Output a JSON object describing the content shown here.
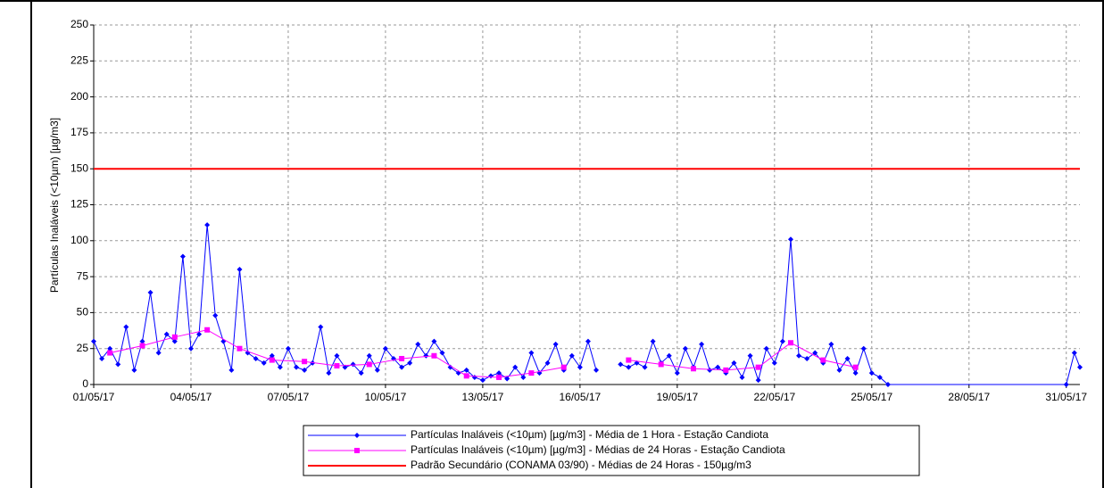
{
  "chart_data": {
    "type": "line",
    "ylabel": "Partículas Inaláveis (<10µm) [µg/m3]",
    "xlim": [
      1,
      31.42
    ],
    "ylim": [
      0,
      250
    ],
    "yticks": [
      0,
      25,
      50,
      75,
      100,
      125,
      150,
      175,
      200,
      225,
      250
    ],
    "xticks": [
      {
        "value": 1,
        "label": "01/05/17"
      },
      {
        "value": 4,
        "label": "04/05/17"
      },
      {
        "value": 7,
        "label": "07/05/17"
      },
      {
        "value": 10,
        "label": "10/05/17"
      },
      {
        "value": 13,
        "label": "13/05/17"
      },
      {
        "value": 16,
        "label": "16/05/17"
      },
      {
        "value": 19,
        "label": "19/05/17"
      },
      {
        "value": 22,
        "label": "22/05/17"
      },
      {
        "value": 25,
        "label": "25/05/17"
      },
      {
        "value": 28,
        "label": "28/05/17"
      },
      {
        "value": 31,
        "label": "31/05/17"
      }
    ],
    "grid": true,
    "series": [
      {
        "name": "Partículas Inaláveis (<10µm) [µg/m3] - Média de 1 Hora - Estação Candiota",
        "color": "#0000ff",
        "marker": "diamond",
        "x": [
          1,
          1.25,
          1.5,
          1.75,
          2,
          2.25,
          2.5,
          2.75,
          3,
          3.25,
          3.5,
          3.75,
          4,
          4.25,
          4.5,
          4.75,
          5,
          5.25,
          5.5,
          5.75,
          6,
          6.25,
          6.5,
          6.75,
          7,
          7.25,
          7.5,
          7.75,
          8,
          8.25,
          8.5,
          8.75,
          9,
          9.25,
          9.5,
          9.75,
          10,
          10.25,
          10.5,
          10.75,
          11,
          11.25,
          11.5,
          11.75,
          12,
          12.25,
          12.5,
          12.75,
          13,
          13.25,
          13.5,
          13.75,
          14,
          14.25,
          14.5,
          14.75,
          15,
          15.25,
          15.5,
          15.75,
          16,
          16.25,
          16.5,
          16.75,
          17,
          17.25,
          17.5,
          17.75,
          18,
          18.25,
          18.5,
          18.75,
          19,
          19.25,
          19.5,
          19.75,
          20,
          20.25,
          20.5,
          20.75,
          21,
          21.25,
          21.5,
          21.75,
          22,
          22.25,
          22.5,
          22.75,
          23,
          23.25,
          23.5,
          23.75,
          24,
          24.25,
          24.5,
          24.75,
          25,
          25.25,
          25.5,
          31,
          31.25,
          31.42
        ],
        "values": [
          30,
          18,
          25,
          14,
          40,
          10,
          30,
          64,
          22,
          35,
          30,
          89,
          25,
          35,
          111,
          48,
          30,
          10,
          80,
          22,
          18,
          15,
          20,
          12,
          25,
          12,
          10,
          15,
          40,
          8,
          20,
          12,
          14,
          8,
          20,
          10,
          25,
          18,
          12,
          15,
          28,
          20,
          30,
          22,
          12,
          8,
          10,
          5,
          3,
          6,
          8,
          4,
          12,
          5,
          22,
          8,
          15,
          28,
          10,
          20,
          12,
          30,
          10,
          null,
          null,
          14,
          12,
          15,
          12,
          30,
          15,
          20,
          8,
          25,
          12,
          28,
          10,
          12,
          8,
          15,
          5,
          20,
          3,
          25,
          15,
          30,
          101,
          20,
          18,
          22,
          15,
          28,
          10,
          18,
          8,
          25,
          8,
          5,
          0,
          0,
          22,
          12
        ]
      },
      {
        "name": "Partículas Inaláveis (<10µm) [µg/m3] - Médias de 24 Horas - Estação Candiota",
        "color": "#ff00ff",
        "marker": "square",
        "x": [
          1.5,
          2.5,
          3.5,
          4.5,
          5.5,
          6.5,
          7.5,
          8.5,
          9.5,
          10.5,
          11.5,
          12.5,
          13.5,
          14.5,
          15.5,
          16.5,
          17.5,
          18.5,
          19.5,
          20.5,
          21.5,
          22.5,
          23.5,
          24.5
        ],
        "values": [
          22,
          27,
          33,
          38,
          25,
          17,
          16,
          13,
          14,
          18,
          20,
          6,
          5,
          8,
          12,
          null,
          17,
          14,
          11,
          10,
          12,
          29,
          17,
          12
        ]
      },
      {
        "name": "Padrão Secundário (CONAMA 03/90) - Médias de 24 Horas - 150µg/m3",
        "color": "#ff0000",
        "marker": "none",
        "x": [
          1,
          31.42
        ],
        "values": [
          150,
          150
        ]
      }
    ]
  }
}
